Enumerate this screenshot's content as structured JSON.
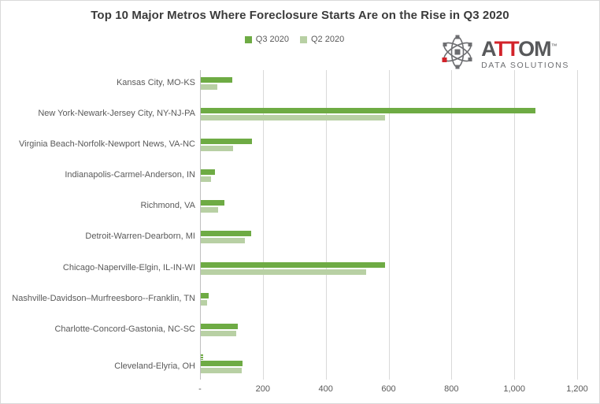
{
  "title": "Top 10 Major Metros Where Foreclosure Starts Are on the Rise in Q3 2020",
  "legend": {
    "items": [
      {
        "label": "Q3 2020",
        "color": "#6eab44"
      },
      {
        "label": "Q2 2020",
        "color": "#b8d0a4"
      }
    ]
  },
  "logo": {
    "word_start": "A",
    "word_red": "TT",
    "word_end": "OM",
    "trademark": "™",
    "subtitle": "DATA SOLUTIONS",
    "gray": "#58595b",
    "red": "#d2232a"
  },
  "chart_data": {
    "type": "bar",
    "orientation": "horizontal",
    "title": "Top 10 Major Metros Where Foreclosure Starts Are on the Rise in Q3 2020",
    "categories": [
      "Kansas City, MO-KS",
      "New York-Newark-Jersey City, NY-NJ-PA",
      "Virginia Beach-Norfolk-Newport News, VA-NC",
      "Indianapolis-Carmel-Anderson, IN",
      "Richmond, VA",
      "Detroit-Warren-Dearborn, MI",
      "Chicago-Naperville-Elgin, IL-IN-WI",
      "Nashville-Davidson–Murfreesboro--Franklin, TN",
      "Charlotte-Concord-Gastonia, NC-SC",
      "Cleveland-Elyria, OH"
    ],
    "series": [
      {
        "name": "Q3 2020",
        "color": "#6eab44",
        "values": [
          100,
          1065,
          163,
          44,
          75,
          159,
          586,
          24,
          118,
          132
        ]
      },
      {
        "name": "Q2 2020",
        "color": "#b8d0a4",
        "values": [
          53,
          587,
          103,
          32,
          55,
          139,
          525,
          20,
          112,
          130
        ]
      }
    ],
    "xlim": [
      0,
      1200
    ],
    "x_ticks": [
      {
        "label": "-",
        "value": 0
      },
      {
        "label": "200",
        "value": 200
      },
      {
        "label": "400",
        "value": 400
      },
      {
        "label": "600",
        "value": 600
      },
      {
        "label": "800",
        "value": 800
      },
      {
        "label": "1,000",
        "value": 1000
      },
      {
        "label": "1,200",
        "value": 1200
      }
    ],
    "grid": "vertical",
    "gridline_color": "#d9d9d9",
    "axis_line_color": "#bfbfbf",
    "legend_position": "top-center",
    "extra_marks": [
      {
        "category_index": 9,
        "series": "Q3 2020",
        "value": 6,
        "note": "tiny dashed sliver above Cleveland-Elyria bars"
      }
    ]
  }
}
